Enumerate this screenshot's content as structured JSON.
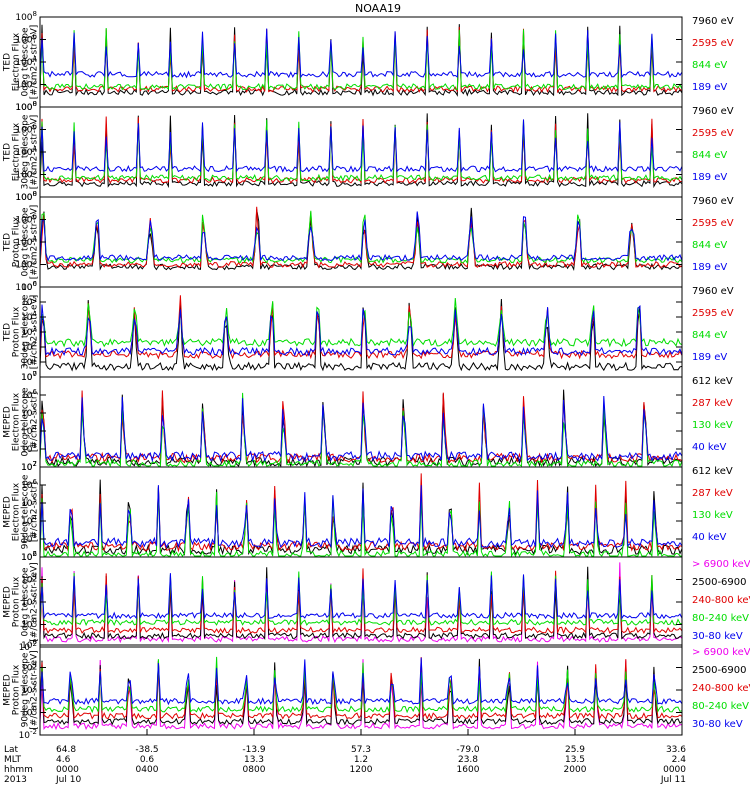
{
  "title": "NOAA19",
  "colors": {
    "black": "#000000",
    "red": "#e00000",
    "green": "#00dd00",
    "blue": "#0000ee",
    "magenta": "#ee00ee"
  },
  "chart_data": [
    {
      "type": "line",
      "ylabel": [
        "TED",
        "Electron Flux",
        "0deg telescope",
        "[#/cm2-s-str-eV]"
      ],
      "y_scale": "log",
      "ylim_exp": [
        0,
        8
      ],
      "tick_exps": [
        0,
        2,
        4,
        6,
        8
      ],
      "base": 100,
      "spikes": 20,
      "series": [
        {
          "name": "7960 eV",
          "color": "#000000",
          "level": 1.3
        },
        {
          "name": "2595 eV",
          "color": "#e00000",
          "level": 1.6
        },
        {
          "name": "844 eV",
          "color": "#00dd00",
          "level": 1.8
        },
        {
          "name": "189 eV",
          "color": "#0000ee",
          "level": 2.9
        }
      ]
    },
    {
      "type": "line",
      "ylabel": [
        "TED",
        "Electron Flux",
        "30deg telescope",
        "[#/cm2-s-str-eV]"
      ],
      "y_scale": "log",
      "ylim_exp": [
        0,
        8
      ],
      "tick_exps": [
        0,
        2,
        4,
        6,
        8
      ],
      "base": 100,
      "spikes": 20,
      "series": [
        {
          "name": "7960 eV",
          "color": "#000000",
          "level": 1.2
        },
        {
          "name": "2595 eV",
          "color": "#e00000",
          "level": 1.5
        },
        {
          "name": "844 eV",
          "color": "#00dd00",
          "level": 1.7
        },
        {
          "name": "189 eV",
          "color": "#0000ee",
          "level": 2.5
        }
      ]
    },
    {
      "type": "line",
      "ylabel": [
        "TED",
        "Proton Flux",
        "0deg telescope",
        "[#/cm2-s-str-eV]"
      ],
      "y_scale": "log",
      "ylim_exp": [
        0,
        8
      ],
      "tick_exps": [
        0,
        2,
        4,
        6,
        8
      ],
      "base": 100,
      "spikes": 12,
      "series": [
        {
          "name": "7960 eV",
          "color": "#000000",
          "level": 1.8
        },
        {
          "name": "2595 eV",
          "color": "#e00000",
          "level": 2.0
        },
        {
          "name": "844 eV",
          "color": "#00dd00",
          "level": 2.4
        },
        {
          "name": "189 eV",
          "color": "#0000ee",
          "level": 2.6
        }
      ]
    },
    {
      "type": "line",
      "ylabel": [
        "TED",
        "Proton Flux",
        "30deg telescope",
        "[#/cm2-s-str-eV]"
      ],
      "y_scale": "log",
      "ylim_exp": [
        0,
        6
      ],
      "tick_exps": [
        0,
        1,
        2,
        3,
        4,
        5,
        6
      ],
      "base": 10,
      "spikes": 14,
      "series": [
        {
          "name": "7960 eV",
          "color": "#000000",
          "level": 0.7
        },
        {
          "name": "2595 eV",
          "color": "#e00000",
          "level": 1.5
        },
        {
          "name": "844 eV",
          "color": "#00dd00",
          "level": 2.3
        },
        {
          "name": "189 eV",
          "color": "#0000ee",
          "level": 1.7
        }
      ]
    },
    {
      "type": "line",
      "ylabel": [
        "MEPED",
        "Electron Flux",
        "0deg telescope",
        "[#/cm2-s-str]"
      ],
      "y_scale": "log",
      "ylim_exp": [
        2,
        7
      ],
      "tick_exps": [
        2,
        3,
        4,
        5,
        6,
        7
      ],
      "base": 10,
      "spikes": 16,
      "series": [
        {
          "name": "612 keV",
          "color": "#000000",
          "level": 2.3
        },
        {
          "name": "287 keV",
          "color": "#e00000",
          "level": 2.5
        },
        {
          "name": "130 keV",
          "color": "#00dd00",
          "level": 2.15
        },
        {
          "name": "40 keV",
          "color": "#0000ee",
          "level": 2.6
        }
      ]
    },
    {
      "type": "line",
      "ylabel": [
        "MEPED",
        "Electron Flux",
        "90deg telescope",
        "[#/cm2-s-str]"
      ],
      "y_scale": "log",
      "ylim_exp": [
        2,
        7
      ],
      "tick_exps": [
        2,
        3,
        4,
        5,
        6,
        7
      ],
      "base": 10,
      "spikes": 22,
      "series": [
        {
          "name": "612 keV",
          "color": "#000000",
          "level": 2.4
        },
        {
          "name": "287 keV",
          "color": "#e00000",
          "level": 2.6
        },
        {
          "name": "130 keV",
          "color": "#00dd00",
          "level": 2.1
        },
        {
          "name": "40 keV",
          "color": "#0000ee",
          "level": 2.8
        }
      ]
    },
    {
      "type": "line",
      "ylabel": [
        "MEPED",
        "Proton Flux",
        "0deg telescope",
        "[#/cm2-s-str-keV]"
      ],
      "y_scale": "log",
      "ylim_exp": [
        -2,
        6
      ],
      "tick_exps": [
        -2,
        0,
        2,
        4,
        6
      ],
      "base": 10,
      "spikes": 20,
      "series": [
        {
          "name": "> 6900 keV",
          "color": "#ee00ee",
          "level": -1.3
        },
        {
          "name": "2500-6900",
          "color": "#000000",
          "level": -1.0
        },
        {
          "name": "240-800 keV",
          "color": "#e00000",
          "level": -0.5
        },
        {
          "name": "80-240 keV",
          "color": "#00dd00",
          "level": 0.2
        },
        {
          "name": "30-80 keV",
          "color": "#0000ee",
          "level": 0.8
        }
      ]
    },
    {
      "type": "line",
      "ylabel": [
        "MEPED",
        "Proton Flux",
        "90deg telescope",
        "[#/cm2-s-str-keV]"
      ],
      "y_scale": "log",
      "ylim_exp": [
        -2,
        6
      ],
      "tick_exps": [
        -2,
        0,
        2,
        4,
        6
      ],
      "base": 10,
      "spikes": 22,
      "series": [
        {
          "name": "> 6900 keV",
          "color": "#ee00ee",
          "level": -1.2
        },
        {
          "name": "2500-6900",
          "color": "#000000",
          "level": -0.8
        },
        {
          "name": "240-800 keV",
          "color": "#e00000",
          "level": -0.3
        },
        {
          "name": "80-240 keV",
          "color": "#00dd00",
          "level": 0.3
        },
        {
          "name": "30-80 keV",
          "color": "#0000ee",
          "level": 1.0
        }
      ]
    }
  ],
  "x_axis": {
    "row_labels": [
      "Lat",
      "MLT",
      "hhmm",
      "2013"
    ],
    "ticks": [
      {
        "t": 0,
        "lat": "64.8",
        "mlt": "4.6",
        "hhmm": "0000",
        "date": "Jul 10"
      },
      {
        "t": 4,
        "lat": "-38.5",
        "mlt": "0.6",
        "hhmm": "0400",
        "date": ""
      },
      {
        "t": 8,
        "lat": "-13.9",
        "mlt": "13.3",
        "hhmm": "0800",
        "date": ""
      },
      {
        "t": 12,
        "lat": "57.3",
        "mlt": "1.2",
        "hhmm": "1200",
        "date": ""
      },
      {
        "t": 16,
        "lat": "-79.0",
        "mlt": "23.8",
        "hhmm": "1600",
        "date": ""
      },
      {
        "t": 20,
        "lat": "25.9",
        "mlt": "13.5",
        "hhmm": "2000",
        "date": ""
      },
      {
        "t": 24,
        "lat": "33.6",
        "mlt": "2.4",
        "hhmm": "0000",
        "date": "Jul 11"
      }
    ]
  }
}
